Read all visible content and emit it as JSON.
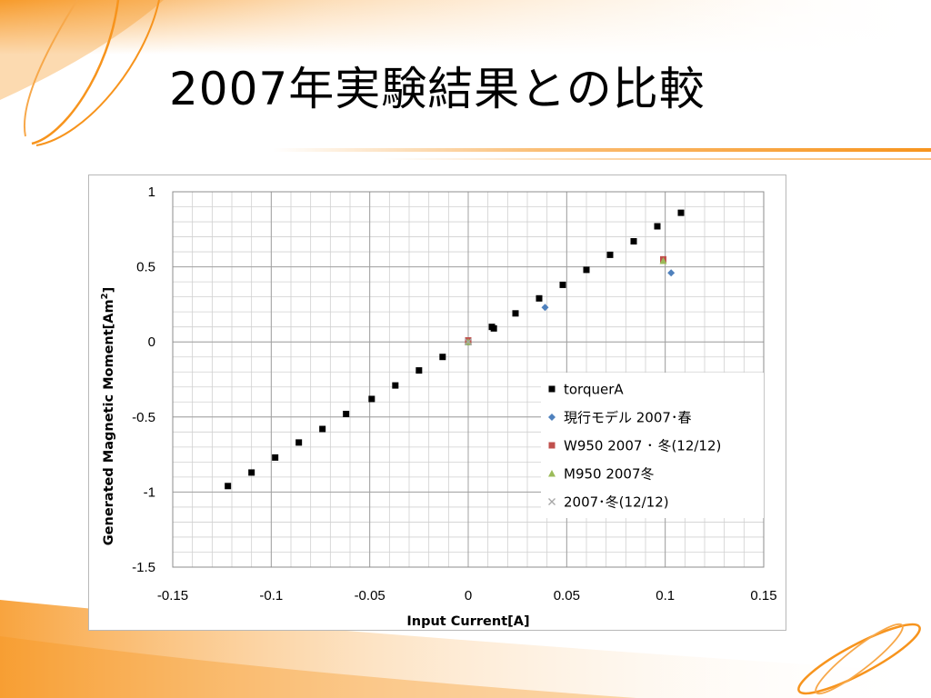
{
  "slide": {
    "title": "2007年実験結果との比較"
  },
  "chart_data": {
    "type": "scatter",
    "title": "",
    "xlabel": "Input Current[A]",
    "ylabel": "Generated Magnetic Moment[Am",
    "ylabel_sup": "2",
    "ylabel_end": "]",
    "xlim": [
      -0.15,
      0.15
    ],
    "ylim": [
      -1.5,
      1
    ],
    "x_ticks": [
      -0.15,
      -0.1,
      -0.05,
      0,
      0.05,
      0.1,
      0.15
    ],
    "x_tick_labels": [
      "-0.15",
      "-0.1",
      "-0.05",
      "0",
      "0.05",
      "0.1",
      "0.15"
    ],
    "y_ticks": [
      1,
      0.5,
      0,
      -0.5,
      -1,
      -1.5
    ],
    "y_tick_labels": [
      "1",
      "0.5",
      "0",
      "-0.5",
      "-1",
      "-1.5"
    ],
    "grid": true,
    "legend_position": "bottom-right",
    "series": [
      {
        "name": "torquerA",
        "marker": "square",
        "color": "#000000",
        "points": [
          [
            -0.122,
            -0.96
          ],
          [
            -0.11,
            -0.87
          ],
          [
            -0.098,
            -0.77
          ],
          [
            -0.086,
            -0.67
          ],
          [
            -0.074,
            -0.58
          ],
          [
            -0.062,
            -0.48
          ],
          [
            -0.049,
            -0.38
          ],
          [
            -0.037,
            -0.29
          ],
          [
            -0.025,
            -0.19
          ],
          [
            -0.013,
            -0.1
          ],
          [
            0.0,
            0.0
          ],
          [
            0.012,
            0.1
          ],
          [
            0.013,
            0.09
          ],
          [
            0.024,
            0.19
          ],
          [
            0.036,
            0.29
          ],
          [
            0.048,
            0.38
          ],
          [
            0.06,
            0.48
          ],
          [
            0.072,
            0.58
          ],
          [
            0.084,
            0.67
          ],
          [
            0.096,
            0.77
          ],
          [
            0.108,
            0.86
          ]
        ]
      },
      {
        "name": "現行モデル 2007･春",
        "marker": "diamond",
        "color": "#4f81bd",
        "points": [
          [
            0.0,
            0.0
          ],
          [
            0.039,
            0.23
          ],
          [
            0.103,
            0.46
          ]
        ]
      },
      {
        "name": "W950 2007 ･ 冬(12/12)",
        "marker": "square",
        "color": "#c0504d",
        "points": [
          [
            0.0,
            0.01
          ],
          [
            0.099,
            0.55
          ]
        ]
      },
      {
        "name": "M950 2007冬",
        "marker": "triangle",
        "color": "#9bbb59",
        "points": [
          [
            0.0,
            0.0
          ],
          [
            0.099,
            0.54
          ]
        ]
      },
      {
        "name": "2007･冬(12/12)",
        "marker": "x",
        "color": "#a6a6a6",
        "points": [
          [
            0.0,
            0.0
          ]
        ]
      }
    ]
  },
  "theme": {
    "accent": "#f7941d",
    "accent_light": "#fbd39b",
    "grid_color": "#d0d0d0"
  }
}
